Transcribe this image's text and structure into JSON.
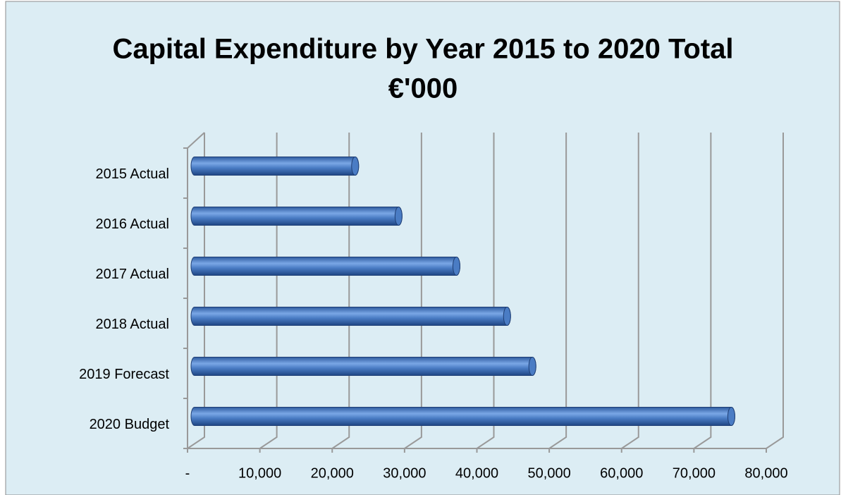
{
  "chart_data": {
    "type": "bar",
    "orientation": "horizontal",
    "title": "Capital Expenditure by Year 2015 to 2020 Total",
    "subtitle": "€'000",
    "categories": [
      "2015 Actual",
      "2016 Actual",
      "2017 Actual",
      "2018 Actual",
      "2019 Forecast",
      "2020  Budget"
    ],
    "values": [
      22000,
      28000,
      36000,
      43000,
      46500,
      74000
    ],
    "color": "#4a7cc4",
    "xlim": [
      0,
      80000
    ],
    "xticks": [
      {
        "value": 0,
        "label": "-"
      },
      {
        "value": 10000,
        "label": "10,000"
      },
      {
        "value": 20000,
        "label": "20,000"
      },
      {
        "value": 30000,
        "label": "30,000"
      },
      {
        "value": 40000,
        "label": "40,000"
      },
      {
        "value": 50000,
        "label": "50,000"
      },
      {
        "value": 60000,
        "label": "60,000"
      },
      {
        "value": 70000,
        "label": "70,000"
      },
      {
        "value": 80000,
        "label": "80,000"
      }
    ],
    "grid": true
  }
}
